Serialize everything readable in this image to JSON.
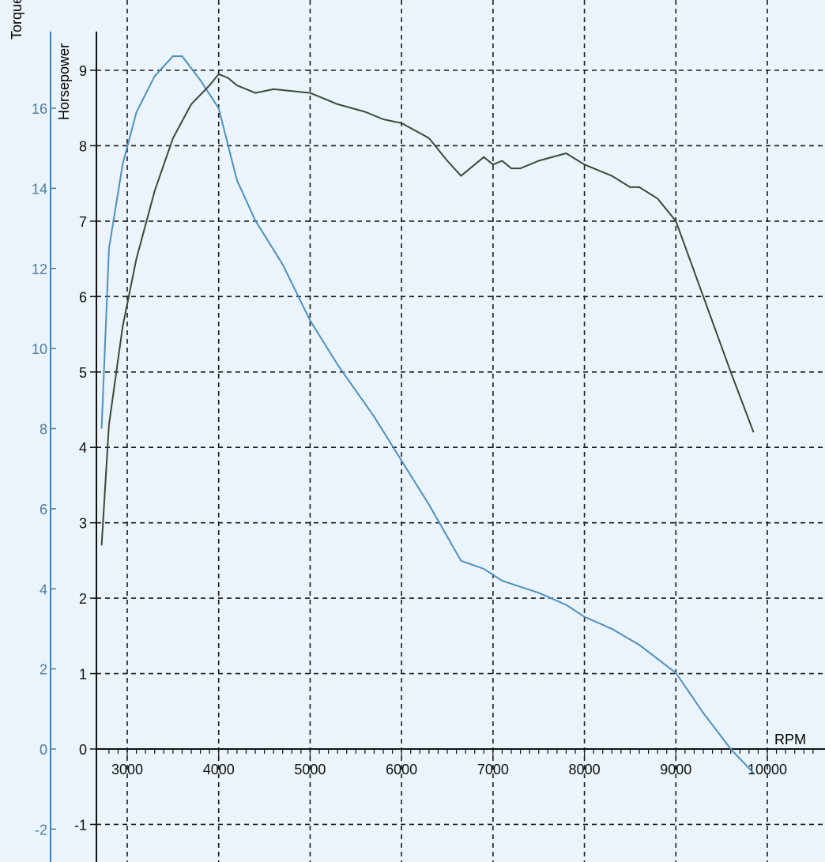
{
  "chart_data": {
    "type": "line",
    "title": "",
    "xlabel": "RPM",
    "xlim": [
      2700,
      10600
    ],
    "x_ticks": [
      3000,
      4000,
      5000,
      6000,
      7000,
      8000,
      9000,
      10000
    ],
    "x_tick_labels": [
      "3000",
      "4000",
      "5000",
      "6000",
      "7000",
      "8000",
      "9000",
      "10000"
    ],
    "grid": true,
    "grid_style": "dashed",
    "axes": {
      "torque": {
        "label": "Torque",
        "color": "#4a7fa6",
        "ylim": [
          -2.2,
          18.4
        ],
        "ticks": [
          -2,
          0,
          2,
          4,
          6,
          8,
          10,
          12,
          14,
          16
        ],
        "tick_labels": [
          "-2",
          "0",
          "2",
          "4",
          "6",
          "8",
          "10",
          "12",
          "14",
          "16"
        ]
      },
      "horsepower": {
        "label": "Horsepower",
        "color": "#222222",
        "ylim": [
          -1.1,
          9.2
        ],
        "ticks": [
          -1,
          0,
          1,
          2,
          3,
          4,
          5,
          6,
          7,
          8,
          9
        ],
        "tick_labels": [
          "-1",
          "0",
          "1",
          "2",
          "3",
          "4",
          "5",
          "6",
          "7",
          "8",
          "9"
        ]
      }
    },
    "series": [
      {
        "axis": "torque",
        "color": "#4f8fc0",
        "x": [
          2720,
          2800,
          2950,
          3100,
          3300,
          3500,
          3600,
          3800,
          4000,
          4200,
          4400,
          4700,
          5000,
          5300,
          5700,
          6000,
          6300,
          6650,
          6900,
          7100,
          7500,
          7800,
          8000,
          8300,
          8600,
          9000,
          9300,
          9600,
          9850
        ],
        "y": [
          8.0,
          12.5,
          14.6,
          15.9,
          16.8,
          17.3,
          17.3,
          16.7,
          16.0,
          14.2,
          13.2,
          12.1,
          10.7,
          9.6,
          8.3,
          7.2,
          6.1,
          4.7,
          4.5,
          4.2,
          3.9,
          3.6,
          3.3,
          3.0,
          2.6,
          1.9,
          0.9,
          0.0,
          -0.6
        ]
      },
      {
        "axis": "horsepower",
        "color": "#3a4a38",
        "x": [
          2720,
          2800,
          2950,
          3100,
          3300,
          3500,
          3700,
          3900,
          4000,
          4100,
          4200,
          4400,
          4600,
          5000,
          5300,
          5600,
          5800,
          6000,
          6300,
          6500,
          6650,
          6800,
          6900,
          7000,
          7100,
          7200,
          7300,
          7500,
          7800,
          8000,
          8300,
          8500,
          8600,
          8800,
          9000,
          9300,
          9600,
          9850
        ],
        "y": [
          2.7,
          4.3,
          5.6,
          6.5,
          7.4,
          8.1,
          8.55,
          8.8,
          8.95,
          8.9,
          8.8,
          8.7,
          8.75,
          8.7,
          8.55,
          8.45,
          8.35,
          8.3,
          8.1,
          7.8,
          7.6,
          7.75,
          7.85,
          7.75,
          7.8,
          7.7,
          7.7,
          7.8,
          7.9,
          7.75,
          7.6,
          7.45,
          7.45,
          7.3,
          7.0,
          6.0,
          5.0,
          4.2
        ]
      }
    ]
  }
}
